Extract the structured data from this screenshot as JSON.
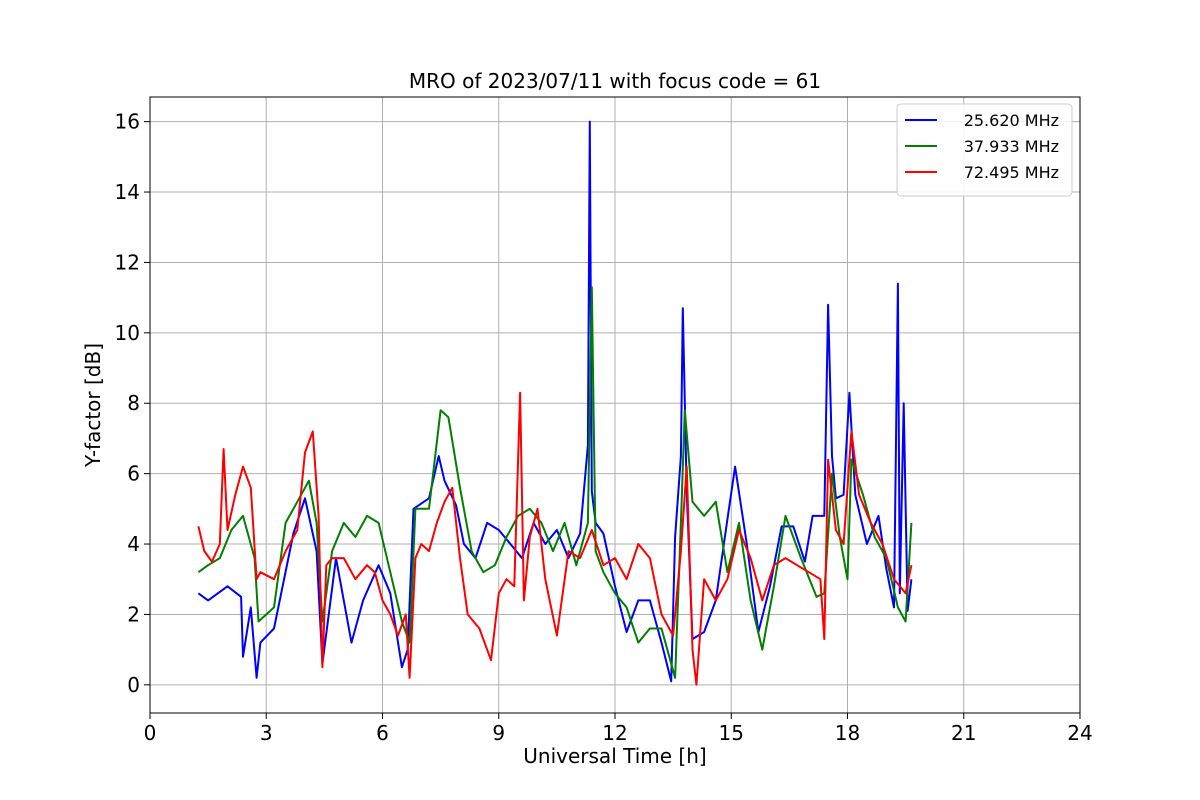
{
  "chart_data": {
    "type": "line",
    "title": "MRO of 2023/07/11 with focus code = 61",
    "xlabel": "Universal Time [h]",
    "ylabel": "Y-factor [dB]",
    "xlim": [
      0,
      24
    ],
    "ylim": [
      -0.8,
      16.7
    ],
    "xticks": [
      0,
      3,
      6,
      9,
      12,
      15,
      18,
      21,
      24
    ],
    "yticks": [
      0,
      2,
      4,
      6,
      8,
      10,
      12,
      14,
      16
    ],
    "grid": true,
    "legend": "top-right",
    "series": [
      {
        "name": "25.620 MHz",
        "color": "#0000ff",
        "x": [
          1.25,
          1.5,
          2.0,
          2.35,
          2.4,
          2.6,
          2.75,
          2.85,
          3.2,
          3.7,
          4.0,
          4.3,
          4.45,
          4.8,
          5.2,
          5.5,
          5.9,
          6.2,
          6.5,
          6.65,
          6.8,
          7.2,
          7.45,
          7.6,
          7.9,
          8.1,
          8.4,
          8.7,
          9.0,
          9.3,
          9.6,
          9.9,
          10.2,
          10.5,
          10.8,
          11.1,
          11.3,
          11.35,
          11.4,
          11.5,
          11.7,
          12.0,
          12.3,
          12.6,
          12.9,
          13.2,
          13.45,
          13.55,
          13.7,
          13.75,
          13.85,
          14.0,
          14.3,
          14.6,
          14.9,
          15.1,
          15.4,
          15.7,
          16.0,
          16.3,
          16.6,
          16.9,
          17.1,
          17.4,
          17.5,
          17.6,
          17.7,
          17.9,
          18.05,
          18.2,
          18.5,
          18.8,
          19.0,
          19.2,
          19.3,
          19.35,
          19.45,
          19.55,
          19.65
        ],
        "y": [
          2.6,
          2.4,
          2.8,
          2.5,
          0.8,
          2.2,
          0.2,
          1.2,
          1.6,
          4.3,
          5.3,
          3.8,
          0.6,
          3.6,
          1.2,
          2.4,
          3.4,
          2.6,
          0.5,
          1.0,
          5.0,
          5.3,
          6.5,
          5.8,
          5.1,
          4.0,
          3.6,
          4.6,
          4.4,
          4.0,
          3.6,
          4.6,
          4.0,
          4.4,
          3.6,
          4.3,
          6.8,
          16.0,
          5.5,
          4.6,
          4.3,
          2.8,
          1.5,
          2.4,
          2.4,
          1.2,
          0.1,
          4.2,
          6.5,
          10.7,
          5.5,
          1.3,
          1.5,
          2.4,
          4.7,
          6.2,
          4.0,
          1.5,
          2.8,
          4.5,
          4.5,
          3.5,
          4.8,
          4.8,
          10.8,
          6.5,
          5.3,
          5.4,
          8.3,
          5.4,
          4.0,
          4.8,
          3.3,
          2.2,
          11.4,
          2.6,
          8.0,
          2.1,
          3.0
        ]
      },
      {
        "name": "37.933 MHz",
        "color": "#008000",
        "x": [
          1.25,
          1.5,
          1.8,
          2.1,
          2.4,
          2.7,
          2.8,
          3.2,
          3.5,
          3.8,
          4.1,
          4.3,
          4.45,
          4.7,
          5.0,
          5.3,
          5.6,
          5.9,
          6.2,
          6.5,
          6.7,
          6.85,
          7.2,
          7.5,
          7.7,
          8.0,
          8.3,
          8.6,
          8.9,
          9.2,
          9.5,
          9.8,
          10.1,
          10.4,
          10.7,
          11.0,
          11.3,
          11.4,
          11.5,
          11.7,
          12.0,
          12.3,
          12.6,
          12.9,
          13.2,
          13.4,
          13.55,
          13.7,
          13.8,
          14.0,
          14.3,
          14.6,
          14.9,
          15.2,
          15.5,
          15.8,
          16.1,
          16.4,
          16.8,
          17.2,
          17.4,
          17.6,
          17.8,
          18.0,
          18.1,
          18.4,
          18.7,
          19.0,
          19.3,
          19.5,
          19.65
        ],
        "y": [
          3.2,
          3.4,
          3.6,
          4.4,
          4.8,
          3.6,
          1.8,
          2.2,
          4.6,
          5.2,
          5.8,
          4.6,
          1.8,
          3.8,
          4.6,
          4.2,
          4.8,
          4.6,
          3.2,
          1.8,
          1.2,
          5.0,
          5.0,
          7.8,
          7.6,
          5.6,
          3.8,
          3.2,
          3.4,
          4.2,
          4.8,
          5.0,
          4.6,
          3.8,
          4.6,
          3.4,
          4.6,
          11.3,
          3.8,
          3.2,
          2.6,
          2.2,
          1.2,
          1.6,
          1.6,
          0.8,
          0.2,
          4.6,
          7.8,
          5.2,
          4.8,
          5.2,
          3.2,
          4.6,
          2.4,
          1.0,
          2.8,
          4.8,
          3.6,
          2.5,
          2.6,
          6.0,
          4.2,
          3.0,
          6.4,
          5.4,
          4.2,
          3.6,
          2.2,
          1.8,
          4.6
        ]
      },
      {
        "name": "72.495 MHz",
        "color": "#ff0000",
        "x": [
          1.25,
          1.4,
          1.6,
          1.8,
          1.9,
          2.0,
          2.2,
          2.4,
          2.6,
          2.75,
          2.85,
          3.2,
          3.5,
          3.8,
          4.0,
          4.2,
          4.35,
          4.45,
          4.55,
          4.7,
          5.0,
          5.3,
          5.6,
          5.8,
          6.0,
          6.2,
          6.4,
          6.6,
          6.7,
          6.85,
          7.0,
          7.2,
          7.4,
          7.6,
          7.8,
          8.0,
          8.2,
          8.5,
          8.8,
          9.0,
          9.2,
          9.4,
          9.55,
          9.65,
          9.8,
          10.0,
          10.2,
          10.5,
          10.8,
          11.1,
          11.4,
          11.7,
          12.0,
          12.3,
          12.6,
          12.9,
          13.2,
          13.5,
          13.7,
          13.85,
          14.0,
          14.1,
          14.3,
          14.6,
          14.9,
          15.2,
          15.5,
          15.8,
          16.1,
          16.4,
          16.7,
          17.0,
          17.3,
          17.4,
          17.5,
          17.7,
          17.9,
          18.1,
          18.3,
          18.6,
          18.9,
          19.2,
          19.5,
          19.65
        ],
        "y": [
          4.5,
          3.8,
          3.5,
          4.0,
          6.7,
          4.4,
          5.4,
          6.2,
          5.6,
          3.0,
          3.2,
          3.0,
          3.8,
          4.4,
          6.6,
          7.2,
          4.8,
          0.5,
          3.4,
          3.6,
          3.6,
          3.0,
          3.4,
          3.2,
          2.4,
          2.0,
          1.4,
          2.0,
          0.2,
          3.6,
          4.0,
          3.8,
          4.6,
          5.2,
          5.6,
          3.6,
          2.0,
          1.6,
          0.7,
          2.6,
          3.0,
          2.8,
          8.3,
          2.4,
          4.2,
          5.0,
          3.0,
          1.4,
          3.8,
          3.6,
          4.4,
          3.4,
          3.6,
          3.0,
          4.0,
          3.6,
          2.0,
          1.4,
          3.8,
          6.2,
          1.0,
          0.0,
          3.0,
          2.4,
          3.0,
          4.4,
          3.6,
          2.4,
          3.4,
          3.6,
          3.4,
          3.2,
          3.0,
          1.3,
          6.4,
          4.4,
          4.0,
          7.2,
          5.4,
          4.6,
          4.0,
          3.0,
          2.6,
          3.4
        ]
      }
    ]
  }
}
